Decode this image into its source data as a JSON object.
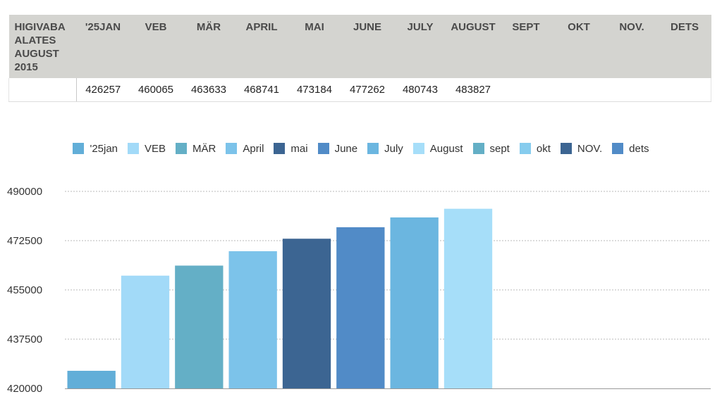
{
  "table": {
    "header_label": "HIGIVABA ALATES AUGUST 2015",
    "columns": [
      "'25JAN",
      "VEB",
      "MÄR",
      "APRIL",
      "MAI",
      "JUNE",
      "JULY",
      "AUGUST",
      "SEPT",
      "OKT",
      "NOV.",
      "DETS"
    ],
    "row_label": "",
    "values": [
      "426257",
      "460065",
      "463633",
      "468741",
      "473184",
      "477262",
      "480743",
      "483827",
      "",
      "",
      "",
      ""
    ]
  },
  "chart_data": {
    "type": "bar",
    "categories": [
      "'25jan",
      "VEB",
      "MÄR",
      "April",
      "mai",
      "June",
      "July",
      "August",
      "sept",
      "okt",
      "NOV.",
      "dets"
    ],
    "values": [
      426257,
      460065,
      463633,
      468741,
      473184,
      477262,
      480743,
      483827,
      null,
      null,
      null,
      null
    ],
    "colors": [
      "#62aed8",
      "#a2daf8",
      "#64afc6",
      "#7cc3ea",
      "#3c6592",
      "#518bc7",
      "#6bb6e0",
      "#a6def9",
      "#64afc6",
      "#86ccee",
      "#3c6592",
      "#518bc7"
    ],
    "yticks": [
      420000,
      437500,
      455000,
      472500,
      490000
    ],
    "ylim": [
      420000,
      490000
    ],
    "grid": true,
    "legend_position": "top",
    "title": "",
    "xlabel": "",
    "ylabel": ""
  }
}
